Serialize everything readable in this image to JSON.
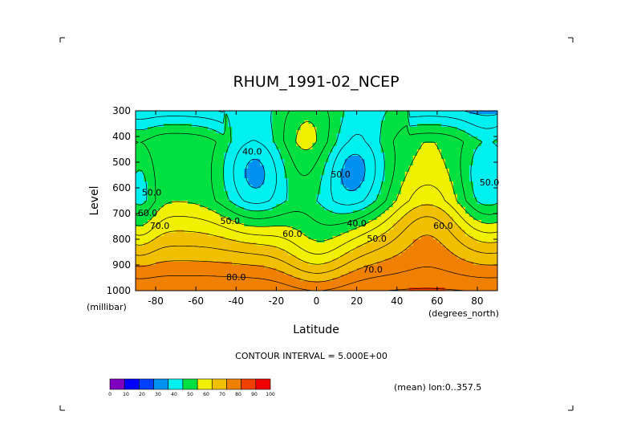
{
  "chart_data": {
    "type": "heatmap",
    "title": "RHUM_1991-02_NCEP",
    "xlabel": "Latitude",
    "ylabel": "Level",
    "x_unit": "(degrees_north)",
    "y_unit": "(millibar)",
    "xlim": [
      -90,
      90
    ],
    "ylim": [
      1000,
      300
    ],
    "x_ticks": [
      "-80",
      "-60",
      "-40",
      "-20",
      "0",
      "20",
      "40",
      "60",
      "80"
    ],
    "x_tick_values": [
      -80,
      -60,
      -40,
      -20,
      0,
      20,
      40,
      60,
      80
    ],
    "y_ticks": [
      "300",
      "400",
      "500",
      "600",
      "700",
      "800",
      "900",
      "1000"
    ],
    "y_tick_values": [
      300,
      400,
      500,
      600,
      700,
      800,
      900,
      1000
    ],
    "contour_interval_label": "CONTOUR INTERVAL = 5.000E+00",
    "mean_label": "(mean) lon:0..357.5",
    "colorbar_ticks": [
      "0",
      "10",
      "20",
      "30",
      "40",
      "50",
      "60",
      "70",
      "80",
      "90",
      "100"
    ],
    "colorbar_colors": [
      "#8000c0",
      "#0000ff",
      "#0040ff",
      "#0090f0",
      "#00f0f0",
      "#00e040",
      "#f0f000",
      "#f0c000",
      "#f08000",
      "#f04000",
      "#f00000"
    ],
    "contour_labels": [
      {
        "text": "40.0",
        "lat": -32,
        "lev": 470
      },
      {
        "text": "50.0",
        "lat": 12,
        "lev": 560
      },
      {
        "text": "40.0",
        "lat": 20,
        "lev": 750
      },
      {
        "text": "50.0",
        "lat": -82,
        "lev": 630
      },
      {
        "text": "60.0",
        "lat": -84,
        "lev": 710
      },
      {
        "text": "70.0",
        "lat": -78,
        "lev": 760
      },
      {
        "text": "50.0",
        "lat": -43,
        "lev": 740
      },
      {
        "text": "60.0",
        "lat": -12,
        "lev": 790
      },
      {
        "text": "50.0",
        "lat": 30,
        "lev": 810
      },
      {
        "text": "60.0",
        "lat": 63,
        "lev": 760
      },
      {
        "text": "70.0",
        "lat": 28,
        "lev": 930
      },
      {
        "text": "80.0",
        "lat": -40,
        "lev": 960
      },
      {
        "text": "50.0",
        "lat": 86,
        "lev": 590
      }
    ]
  }
}
